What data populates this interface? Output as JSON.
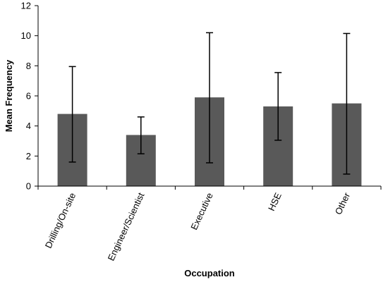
{
  "chart_data": {
    "type": "bar",
    "categories": [
      "Drilling/On-site",
      "Engineer/Scientist",
      "Executive",
      "HSE",
      "Other"
    ],
    "values": [
      4.8,
      3.4,
      5.9,
      5.3,
      5.5
    ],
    "error_bars": {
      "low": [
        1.6,
        2.15,
        1.55,
        3.05,
        0.8
      ],
      "high": [
        7.95,
        4.6,
        10.2,
        7.55,
        10.15
      ]
    },
    "xlabel": "Occupation",
    "ylabel": "Mean Frequency",
    "ylim": [
      0,
      12
    ],
    "yticks": [
      0,
      2,
      4,
      6,
      8,
      10,
      12
    ],
    "bar_color": "#595959",
    "grid": false,
    "legend": false
  }
}
